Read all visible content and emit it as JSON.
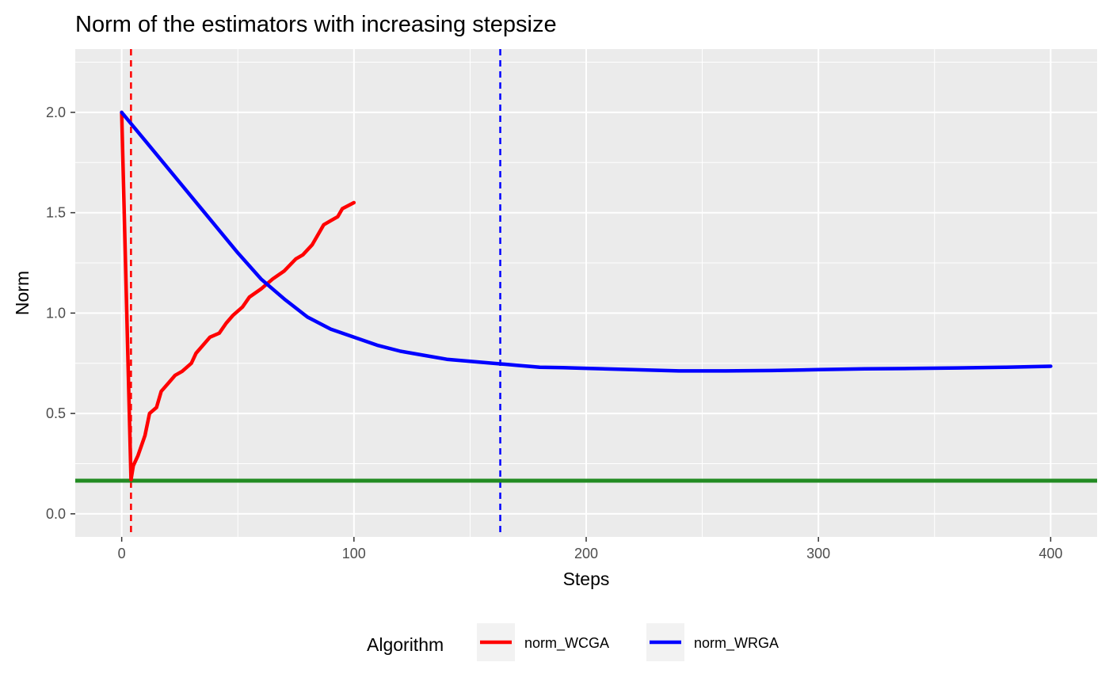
{
  "chart_data": {
    "type": "line",
    "title": "Norm of the estimators with increasing stepsize",
    "xlabel": "Steps",
    "ylabel": "Norm",
    "xlim": [
      -20,
      420
    ],
    "ylim": [
      -0.115,
      2.315
    ],
    "x_ticks": [
      0,
      100,
      200,
      300,
      400
    ],
    "x_tick_labels": [
      "0",
      "100",
      "200",
      "300",
      "400"
    ],
    "y_ticks": [
      0.0,
      0.5,
      1.0,
      1.5,
      2.0
    ],
    "y_tick_labels": [
      "0.0",
      "0.5",
      "1.0",
      "1.5",
      "2.0"
    ],
    "grid": true,
    "legend": {
      "title": "Algorithm",
      "position": "bottom",
      "entries": [
        "norm_WCGA",
        "norm_WRGA"
      ]
    },
    "series": [
      {
        "name": "norm_WCGA",
        "color": "#ff0000",
        "x": [
          0,
          4,
          5,
          7,
          10,
          12,
          15,
          17,
          20,
          23,
          26,
          30,
          32,
          35,
          38,
          42,
          45,
          48,
          52,
          55,
          60,
          65,
          70,
          75,
          78,
          82,
          85,
          87,
          90,
          93,
          95,
          100
        ],
        "y": [
          2.0,
          0.17,
          0.24,
          0.29,
          0.39,
          0.5,
          0.53,
          0.61,
          0.65,
          0.69,
          0.71,
          0.75,
          0.8,
          0.84,
          0.88,
          0.9,
          0.95,
          0.99,
          1.03,
          1.08,
          1.12,
          1.17,
          1.21,
          1.27,
          1.29,
          1.34,
          1.4,
          1.44,
          1.46,
          1.48,
          1.52,
          1.55
        ]
      },
      {
        "name": "norm_WRGA",
        "color": "#0000ff",
        "x": [
          0,
          10,
          20,
          30,
          40,
          50,
          60,
          70,
          80,
          90,
          100,
          110,
          120,
          130,
          140,
          150,
          160,
          170,
          180,
          190,
          200,
          220,
          240,
          260,
          280,
          300,
          320,
          340,
          360,
          380,
          400
        ],
        "y": [
          2.0,
          1.86,
          1.72,
          1.58,
          1.44,
          1.3,
          1.17,
          1.07,
          0.98,
          0.92,
          0.88,
          0.84,
          0.81,
          0.79,
          0.77,
          0.76,
          0.75,
          0.74,
          0.73,
          0.728,
          0.725,
          0.718,
          0.712,
          0.712,
          0.714,
          0.718,
          0.722,
          0.724,
          0.727,
          0.73,
          0.735
        ]
      }
    ],
    "reference_lines": [
      {
        "orientation": "vertical",
        "value": 4,
        "color": "#ff0000",
        "style": "dashed"
      },
      {
        "orientation": "vertical",
        "value": 163,
        "color": "#0000ff",
        "style": "dashed"
      },
      {
        "orientation": "horizontal",
        "value": 0.165,
        "color": "#228b22",
        "style": "solid"
      }
    ]
  }
}
